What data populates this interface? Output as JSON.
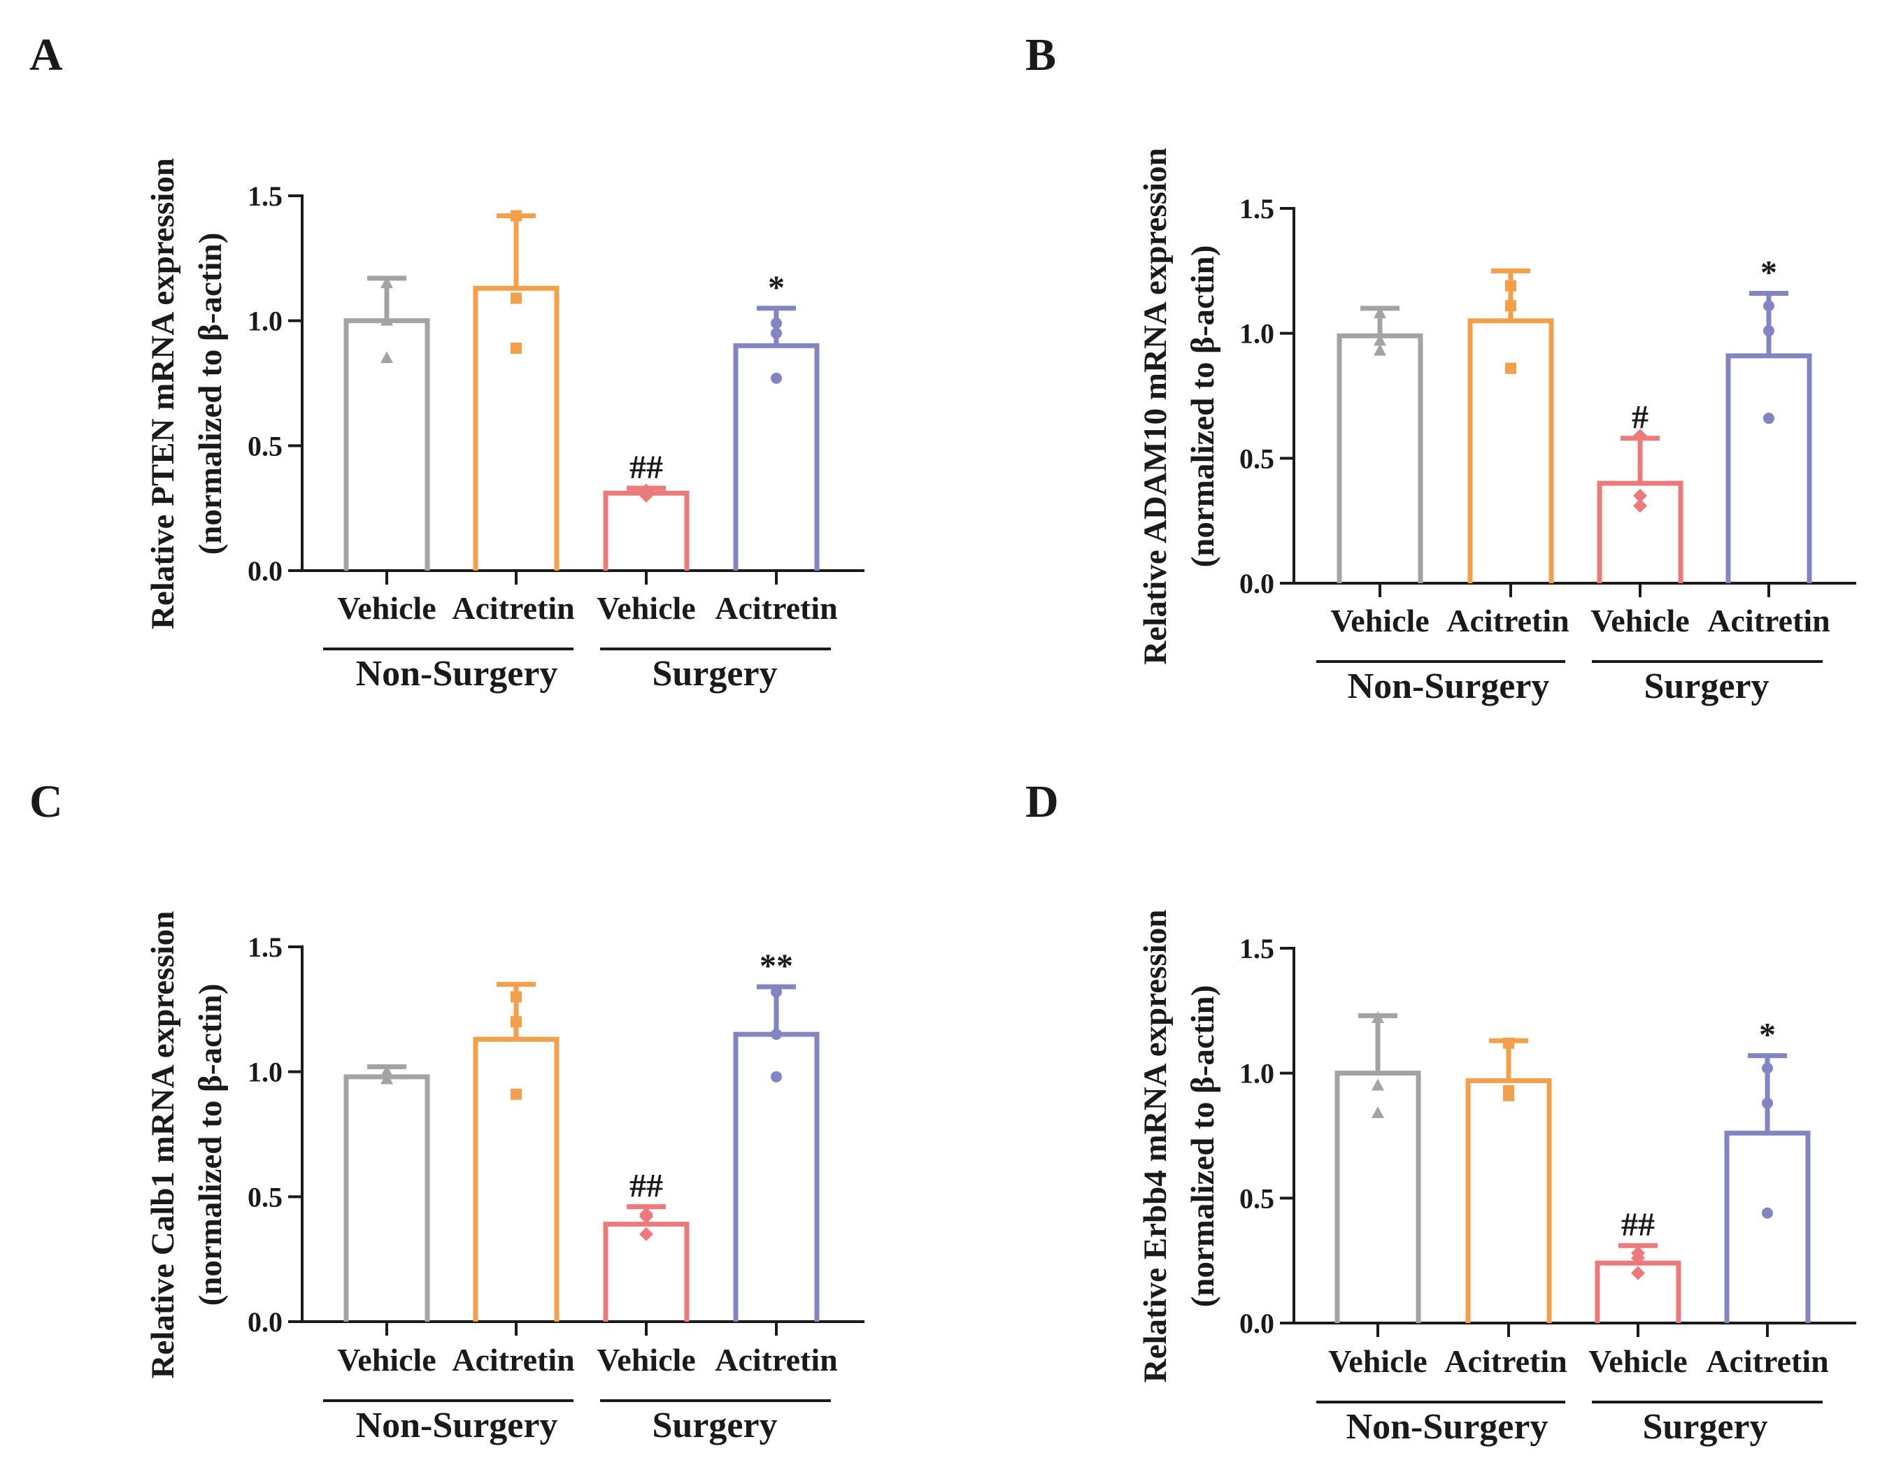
{
  "chart_data": [
    {
      "type": "bar",
      "panel": "A",
      "ylabel": "Relative PTEN mRNA expression",
      "ylabel2": "(normalized to β-actin)",
      "ylim": [
        0,
        1.5
      ],
      "yticks": [
        "0.0",
        "0.5",
        "1.0",
        "1.5"
      ],
      "categories": [
        "Vehicle",
        "Acitretin",
        "Vehicle",
        "Acitretin"
      ],
      "groups": [
        "Non-Surgery",
        "Surgery"
      ],
      "values": [
        1.0,
        1.13,
        0.31,
        0.9
      ],
      "errors": [
        0.17,
        0.29,
        0.02,
        0.15
      ],
      "points": [
        [
          0.85,
          1.0,
          1.15
        ],
        [
          0.89,
          1.09,
          1.42
        ],
        [
          0.3,
          0.31,
          0.32
        ],
        [
          0.77,
          0.95,
          0.99
        ]
      ],
      "markers": [
        "triangle",
        "square",
        "diamond",
        "circle"
      ],
      "significance": [
        "",
        "",
        "##",
        "*"
      ]
    },
    {
      "type": "bar",
      "panel": "B",
      "ylabel": "Relative ADAM10 mRNA expression",
      "ylabel2": "(normalized to β-actin)",
      "ylim": [
        0,
        1.5
      ],
      "yticks": [
        "0.0",
        "0.5",
        "1.0",
        "1.5"
      ],
      "categories": [
        "Vehicle",
        "Acitretin",
        "Vehicle",
        "Acitretin"
      ],
      "groups": [
        "Non-Surgery",
        "Surgery"
      ],
      "values": [
        0.99,
        1.05,
        0.4,
        0.91
      ],
      "errors": [
        0.11,
        0.2,
        0.18,
        0.25
      ],
      "points": [
        [
          0.93,
          0.97,
          1.08
        ],
        [
          0.86,
          1.11,
          1.19
        ],
        [
          0.31,
          0.35,
          0.59
        ],
        [
          0.66,
          1.01,
          1.11
        ]
      ],
      "markers": [
        "triangle",
        "square",
        "diamond",
        "circle"
      ],
      "significance": [
        "",
        "",
        "#",
        "*"
      ]
    },
    {
      "type": "bar",
      "panel": "C",
      "ylabel": "Relative Calb1 mRNA expression",
      "ylabel2": "(normalized to β-actin)",
      "ylim": [
        0,
        1.5
      ],
      "yticks": [
        "0.0",
        "0.5",
        "1.0",
        "1.5"
      ],
      "categories": [
        "Vehicle",
        "Acitretin",
        "Vehicle",
        "Acitretin"
      ],
      "groups": [
        "Non-Surgery",
        "Surgery"
      ],
      "values": [
        0.98,
        1.13,
        0.39,
        1.15
      ],
      "errors": [
        0.04,
        0.22,
        0.07,
        0.19
      ],
      "points": [
        [
          0.97,
          0.99,
          1.0
        ],
        [
          0.91,
          1.2,
          1.3
        ],
        [
          0.35,
          0.42,
          0.43
        ],
        [
          0.98,
          1.15,
          1.32
        ]
      ],
      "markers": [
        "triangle",
        "square",
        "diamond",
        "circle"
      ],
      "significance": [
        "",
        "",
        "##",
        "**"
      ]
    },
    {
      "type": "bar",
      "panel": "D",
      "ylabel": "Relative Erbb4 mRNA expression",
      "ylabel2": "(normalized to β-actin)",
      "ylim": [
        0,
        1.5
      ],
      "yticks": [
        "0.0",
        "0.5",
        "1.0",
        "1.5"
      ],
      "categories": [
        "Vehicle",
        "Acitretin",
        "Vehicle",
        "Acitretin"
      ],
      "groups": [
        "Non-Surgery",
        "Surgery"
      ],
      "values": [
        1.0,
        0.97,
        0.24,
        0.76
      ],
      "errors": [
        0.23,
        0.16,
        0.07,
        0.31
      ],
      "points": [
        [
          0.84,
          0.95,
          1.22
        ],
        [
          0.91,
          0.93,
          1.12
        ],
        [
          0.2,
          0.26,
          0.28
        ],
        [
          0.44,
          0.88,
          1.02
        ]
      ],
      "markers": [
        "triangle",
        "square",
        "diamond",
        "circle"
      ],
      "significance": [
        "",
        "",
        "##",
        "*"
      ]
    }
  ],
  "colors": {
    "bars": [
      "#a3a3a5",
      "#f4a04a",
      "#ec7a7a",
      "#8185c2"
    ],
    "axis": "#1a1a1a"
  }
}
